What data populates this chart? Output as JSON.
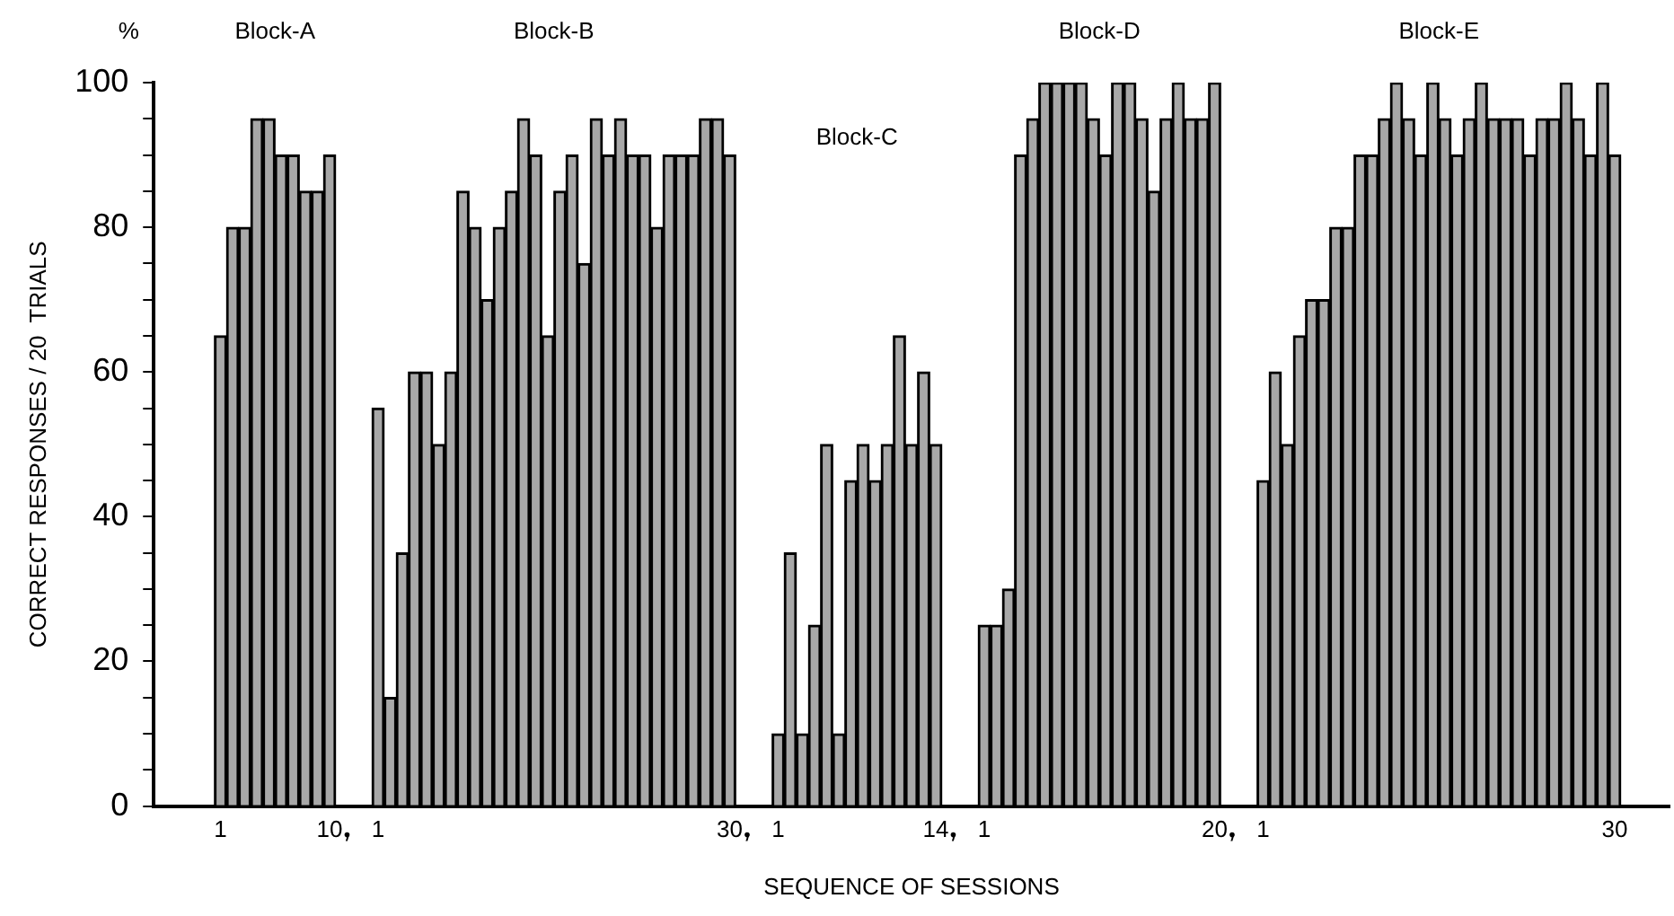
{
  "chart_data": {
    "type": "bar",
    "xlabel": "SEQUENCE OF SESSIONS",
    "ylabel": "CORRECT RESPONSES / 20  TRIALS",
    "annotations": [
      "%",
      "Block-A",
      "Block-B",
      "Block-C",
      "Block-D",
      "Block-E"
    ],
    "categories": [
      null,
      null,
      null,
      null,
      null,
      "1",
      null,
      null,
      null,
      null,
      null,
      null,
      null,
      null,
      "10",
      null,
      null,
      null,
      "1",
      null,
      null,
      null,
      null,
      null,
      null,
      null,
      null,
      null,
      null,
      null,
      null,
      null,
      null,
      null,
      null,
      null,
      null,
      null,
      null,
      null,
      null,
      null,
      null,
      null,
      null,
      null,
      null,
      "30",
      null,
      null,
      null,
      "1",
      null,
      null,
      null,
      null,
      null,
      null,
      null,
      null,
      null,
      null,
      null,
      null,
      "14",
      null,
      null,
      null,
      "1",
      null,
      null,
      null,
      null,
      null,
      null,
      null,
      null,
      null,
      null,
      null,
      null,
      null,
      null,
      null,
      null,
      null,
      null,
      "20",
      null,
      null,
      null,
      "1",
      null,
      null,
      null,
      null,
      null,
      null,
      null,
      null,
      null,
      null,
      null,
      null,
      null,
      null,
      null,
      null,
      null,
      null,
      null,
      null,
      null,
      null,
      null,
      null,
      null,
      null,
      null,
      null,
      "30",
      null,
      null,
      null,
      null
    ],
    "values": [
      null,
      null,
      null,
      null,
      null,
      65,
      80,
      80,
      95,
      95,
      90,
      90,
      85,
      85,
      90,
      null,
      null,
      null,
      55,
      15,
      35,
      60,
      60,
      50,
      60,
      85,
      80,
      70,
      80,
      85,
      95,
      90,
      65,
      85,
      90,
      75,
      95,
      90,
      95,
      90,
      90,
      80,
      90,
      90,
      90,
      95,
      95,
      90,
      null,
      null,
      null,
      10,
      35,
      10,
      25,
      50,
      10,
      45,
      50,
      45,
      50,
      65,
      50,
      60,
      50,
      null,
      null,
      null,
      25,
      25,
      30,
      90,
      95,
      100,
      100,
      100,
      100,
      95,
      90,
      100,
      100,
      95,
      85,
      95,
      100,
      95,
      95,
      100,
      null,
      null,
      null,
      45,
      60,
      50,
      65,
      70,
      70,
      80,
      80,
      90,
      90,
      95,
      100,
      95,
      90,
      100,
      95,
      90,
      95,
      100,
      95,
      95,
      95,
      90,
      95,
      95,
      100,
      95,
      90,
      100,
      90,
      null,
      null,
      null,
      null
    ],
    "color": "#a8a8a8",
    "ylim": [
      0,
      100
    ],
    "yticks": [
      0,
      {
        "value": 5,
        "label": null
      },
      {
        "value": 10,
        "label": null
      },
      {
        "value": 15,
        "label": null
      },
      20,
      {
        "value": 25,
        "label": null
      },
      {
        "value": 30,
        "label": null
      },
      {
        "value": 35,
        "label": null
      },
      40,
      {
        "value": 45,
        "label": null
      },
      {
        "value": 50,
        "label": null
      },
      {
        "value": 55,
        "label": null
      },
      60,
      {
        "value": 65,
        "label": null
      },
      {
        "value": 70,
        "label": null
      },
      {
        "value": 75,
        "label": null
      },
      80,
      {
        "value": 85,
        "label": null
      },
      {
        "value": 90,
        "label": null
      },
      {
        "value": 95,
        "label": null
      },
      100
    ],
    "grid": false,
    "legend": false
  }
}
